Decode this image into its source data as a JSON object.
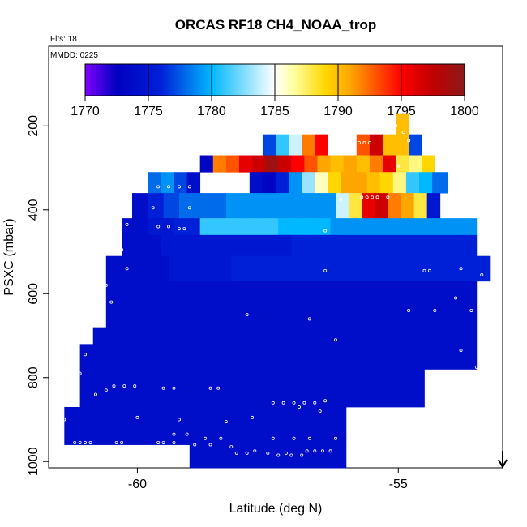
{
  "chart_data": {
    "type": "heatmap",
    "title": "ORCAS RF18 CH4_NOAA_trop",
    "flights_note": "Flts: 18",
    "date_note": "MMDD: 0225",
    "xlabel": "Latitude (deg N)",
    "ylabel": "PSXC (mbar)",
    "xlim": [
      -61.7,
      -53.0
    ],
    "ylim": [
      1015,
      10
    ],
    "y_reversed": true,
    "x_ticks": [
      -60,
      -55
    ],
    "x_tick_labels": [
      "-60",
      "-55"
    ],
    "y_ticks": [
      200,
      400,
      600,
      800,
      1000
    ],
    "y_tick_labels": [
      "200",
      "400",
      "600",
      "800",
      "1000"
    ],
    "colorbar": {
      "min": 1770,
      "max": 1800,
      "ticks": [
        1770,
        1775,
        1780,
        1785,
        1790,
        1795,
        1800
      ],
      "tick_labels": [
        "1770",
        "1775",
        "1780",
        "1785",
        "1790",
        "1795",
        "1800"
      ],
      "colors": [
        "#8000ff",
        "#0000c0",
        "#0020d8",
        "#00b8ff",
        "#ffffff",
        "#ffffa0",
        "#ffd700",
        "#ffa500",
        "#ff0000",
        "#c00000",
        "#8b1a1a"
      ],
      "stops": [
        1770,
        1772.5,
        1776,
        1780,
        1785,
        1786.5,
        1789,
        1791,
        1795,
        1797.5,
        1800
      ]
    },
    "arrow_marker": {
      "x": -53.0,
      "direction": "down"
    },
    "cells": [
      [
        -57.6,
        -57.35,
        220,
        270,
        1777
      ],
      [
        -57.35,
        -57.1,
        220,
        270,
        1781
      ],
      [
        -57.1,
        -56.85,
        220,
        270,
        1784
      ],
      [
        -56.85,
        -56.6,
        220,
        270,
        1792
      ],
      [
        -56.6,
        -56.35,
        220,
        270,
        1795
      ],
      [
        -55.8,
        -55.55,
        220,
        270,
        1793
      ],
      [
        -55.55,
        -55.3,
        220,
        270,
        1797
      ],
      [
        -55.3,
        -55.05,
        220,
        270,
        1790
      ],
      [
        -55.05,
        -54.8,
        220,
        270,
        1790
      ],
      [
        -54.8,
        -54.55,
        220,
        270,
        1777
      ],
      [
        -55.05,
        -54.8,
        170,
        220,
        1790
      ],
      [
        -58.8,
        -58.55,
        270,
        310,
        1773
      ],
      [
        -58.55,
        -58.3,
        270,
        310,
        1792
      ],
      [
        -58.3,
        -58.05,
        270,
        310,
        1793
      ],
      [
        -58.05,
        -57.8,
        270,
        310,
        1796
      ],
      [
        -57.8,
        -57.55,
        270,
        310,
        1797
      ],
      [
        -57.55,
        -57.3,
        270,
        310,
        1799
      ],
      [
        -57.3,
        -57.05,
        270,
        310,
        1797
      ],
      [
        -57.05,
        -56.8,
        270,
        310,
        1795
      ],
      [
        -56.8,
        -56.55,
        270,
        310,
        1793
      ],
      [
        -56.55,
        -56.3,
        270,
        310,
        1791
      ],
      [
        -56.3,
        -56.05,
        270,
        310,
        1790
      ],
      [
        -56.05,
        -55.8,
        270,
        310,
        1791
      ],
      [
        -55.8,
        -55.55,
        270,
        310,
        1790
      ],
      [
        -55.55,
        -55.3,
        270,
        310,
        1792
      ],
      [
        -55.3,
        -55.05,
        270,
        310,
        1796
      ],
      [
        -55.05,
        -54.8,
        270,
        310,
        1788
      ],
      [
        -54.8,
        -54.55,
        270,
        310,
        1787
      ],
      [
        -54.55,
        -54.3,
        270,
        310,
        1789
      ],
      [
        -59.8,
        -59.55,
        310,
        360,
        1778
      ],
      [
        -59.55,
        -59.3,
        310,
        360,
        1779
      ],
      [
        -59.3,
        -59.05,
        310,
        360,
        1777
      ],
      [
        -59.05,
        -58.8,
        310,
        360,
        1774
      ],
      [
        -57.85,
        -57.6,
        310,
        360,
        1774
      ],
      [
        -57.6,
        -57.35,
        310,
        360,
        1773
      ],
      [
        -57.35,
        -57.1,
        310,
        360,
        1776
      ],
      [
        -57.1,
        -56.85,
        310,
        360,
        1779
      ],
      [
        -56.85,
        -56.6,
        310,
        360,
        1783
      ],
      [
        -56.6,
        -56.35,
        310,
        360,
        1786
      ],
      [
        -56.35,
        -56.1,
        310,
        360,
        1789
      ],
      [
        -56.1,
        -55.85,
        310,
        360,
        1791
      ],
      [
        -55.85,
        -55.6,
        310,
        360,
        1791
      ],
      [
        -55.6,
        -55.35,
        310,
        360,
        1790
      ],
      [
        -55.35,
        -55.1,
        310,
        360,
        1789
      ],
      [
        -55.1,
        -54.85,
        310,
        360,
        1787
      ],
      [
        -54.85,
        -54.6,
        310,
        360,
        1781
      ],
      [
        -54.6,
        -54.35,
        310,
        360,
        1780
      ],
      [
        -54.35,
        -54.05,
        310,
        360,
        1778
      ],
      [
        -60.1,
        -59.8,
        360,
        420,
        1774
      ],
      [
        -59.8,
        -59.5,
        360,
        420,
        1776
      ],
      [
        -59.5,
        -59.2,
        360,
        420,
        1777
      ],
      [
        -59.2,
        -58.9,
        360,
        420,
        1778
      ],
      [
        -58.9,
        -58.6,
        360,
        420,
        1778
      ],
      [
        -58.6,
        -58.3,
        360,
        420,
        1778
      ],
      [
        -58.3,
        -58.0,
        360,
        420,
        1779
      ],
      [
        -58.0,
        -57.7,
        360,
        420,
        1779
      ],
      [
        -57.7,
        -57.4,
        360,
        420,
        1779
      ],
      [
        -57.4,
        -57.1,
        360,
        420,
        1779
      ],
      [
        -57.1,
        -56.8,
        360,
        420,
        1779
      ],
      [
        -56.8,
        -56.5,
        360,
        420,
        1779
      ],
      [
        -56.5,
        -56.2,
        360,
        420,
        1779
      ],
      [
        -56.2,
        -55.95,
        360,
        420,
        1784
      ],
      [
        -55.95,
        -55.7,
        360,
        420,
        1788
      ],
      [
        -55.7,
        -55.45,
        360,
        420,
        1796
      ],
      [
        -55.45,
        -55.2,
        360,
        420,
        1797
      ],
      [
        -55.2,
        -54.95,
        360,
        420,
        1792
      ],
      [
        -54.95,
        -54.7,
        360,
        420,
        1791
      ],
      [
        -54.7,
        -54.45,
        360,
        420,
        1788
      ],
      [
        -54.45,
        -54.2,
        360,
        420,
        1775
      ],
      [
        -60.3,
        -60.05,
        420,
        460,
        1774
      ],
      [
        -60.05,
        -59.8,
        420,
        460,
        1774
      ],
      [
        -59.8,
        -59.55,
        420,
        460,
        1775
      ],
      [
        -59.55,
        -59.3,
        420,
        460,
        1775
      ],
      [
        -59.3,
        -59.05,
        420,
        460,
        1776
      ],
      [
        -59.05,
        -58.8,
        420,
        460,
        1776
      ],
      [
        -58.8,
        -58.55,
        420,
        460,
        1781
      ],
      [
        -58.55,
        -58.3,
        420,
        460,
        1781
      ],
      [
        -58.3,
        -58.05,
        420,
        460,
        1781
      ],
      [
        -58.05,
        -57.8,
        420,
        460,
        1781
      ],
      [
        -57.8,
        -57.55,
        420,
        460,
        1781
      ],
      [
        -57.55,
        -57.3,
        420,
        460,
        1781
      ],
      [
        -57.3,
        -57.05,
        420,
        460,
        1780
      ],
      [
        -57.05,
        -56.8,
        420,
        460,
        1780
      ],
      [
        -56.8,
        -56.55,
        420,
        460,
        1780
      ],
      [
        -56.55,
        -56.3,
        420,
        460,
        1780
      ],
      [
        -56.3,
        -56.05,
        420,
        460,
        1779
      ],
      [
        -56.05,
        -55.8,
        420,
        460,
        1779
      ],
      [
        -55.8,
        -55.55,
        420,
        460,
        1779
      ],
      [
        -55.55,
        -55.3,
        420,
        460,
        1779
      ],
      [
        -55.3,
        -55.05,
        420,
        460,
        1779
      ],
      [
        -55.05,
        -54.8,
        420,
        460,
        1779
      ],
      [
        -54.8,
        -54.55,
        420,
        460,
        1779
      ],
      [
        -54.55,
        -54.3,
        420,
        460,
        1779
      ],
      [
        -54.3,
        -54.05,
        420,
        460,
        1779
      ],
      [
        -54.05,
        -53.5,
        420,
        460,
        1779
      ],
      [
        -60.3,
        -60.05,
        460,
        510,
        1774
      ],
      [
        -60.05,
        -59.8,
        460,
        510,
        1774
      ],
      [
        -59.8,
        -59.55,
        460,
        510,
        1774
      ],
      [
        -59.55,
        -59.3,
        460,
        510,
        1775
      ],
      [
        -59.3,
        -59.05,
        460,
        510,
        1775
      ],
      [
        -59.05,
        -58.8,
        460,
        510,
        1775
      ],
      [
        -58.8,
        -58.55,
        460,
        510,
        1775
      ],
      [
        -58.55,
        -58.3,
        460,
        510,
        1775
      ],
      [
        -58.3,
        -58.05,
        460,
        510,
        1775
      ],
      [
        -58.05,
        -57.8,
        460,
        510,
        1775
      ],
      [
        -57.8,
        -57.55,
        460,
        510,
        1775
      ],
      [
        -57.55,
        -57.3,
        460,
        510,
        1775
      ],
      [
        -57.3,
        -57.05,
        460,
        510,
        1775
      ],
      [
        -57.05,
        -56.8,
        460,
        510,
        1776
      ],
      [
        -56.8,
        -56.55,
        460,
        510,
        1776
      ],
      [
        -56.55,
        -56.3,
        460,
        510,
        1776
      ],
      [
        -56.3,
        -56.05,
        460,
        510,
        1776
      ],
      [
        -56.05,
        -55.8,
        460,
        510,
        1776
      ],
      [
        -55.8,
        -55.55,
        460,
        510,
        1776
      ],
      [
        -55.55,
        -55.3,
        460,
        510,
        1776
      ],
      [
        -55.3,
        -55.05,
        460,
        510,
        1776
      ],
      [
        -55.05,
        -54.8,
        460,
        510,
        1776
      ],
      [
        -54.8,
        -54.55,
        460,
        510,
        1776
      ],
      [
        -54.55,
        -54.3,
        460,
        510,
        1776
      ],
      [
        -54.3,
        -54.05,
        460,
        510,
        1776
      ],
      [
        -54.05,
        -53.5,
        460,
        510,
        1776
      ],
      [
        -60.6,
        -60.3,
        510,
        570,
        1774
      ],
      [
        -60.3,
        -60.0,
        510,
        570,
        1774
      ],
      [
        -60.0,
        -59.7,
        510,
        570,
        1774
      ],
      [
        -59.7,
        -59.4,
        510,
        570,
        1774
      ],
      [
        -59.4,
        -59.1,
        510,
        570,
        1775
      ],
      [
        -59.1,
        -58.8,
        510,
        570,
        1775
      ],
      [
        -58.8,
        -58.5,
        510,
        570,
        1775
      ],
      [
        -58.5,
        -58.2,
        510,
        570,
        1775
      ],
      [
        -58.2,
        -57.9,
        510,
        570,
        1776
      ],
      [
        -57.9,
        -57.6,
        510,
        570,
        1776
      ],
      [
        -57.6,
        -57.3,
        510,
        570,
        1776
      ],
      [
        -57.3,
        -57.0,
        510,
        570,
        1776
      ],
      [
        -57.0,
        -56.7,
        510,
        570,
        1776
      ],
      [
        -56.7,
        -56.4,
        510,
        570,
        1776
      ],
      [
        -56.4,
        -56.1,
        510,
        570,
        1776
      ],
      [
        -56.1,
        -55.8,
        510,
        570,
        1776
      ],
      [
        -55.8,
        -55.5,
        510,
        570,
        1776
      ],
      [
        -55.5,
        -55.2,
        510,
        570,
        1776
      ],
      [
        -55.2,
        -54.9,
        510,
        570,
        1776
      ],
      [
        -54.9,
        -54.6,
        510,
        570,
        1776
      ],
      [
        -54.6,
        -54.3,
        510,
        570,
        1776
      ],
      [
        -54.3,
        -54.0,
        510,
        570,
        1776
      ],
      [
        -54.0,
        -53.5,
        510,
        570,
        1776
      ],
      [
        -53.5,
        -53.25,
        510,
        570,
        1776
      ],
      [
        -60.6,
        -53.5,
        570,
        680,
        1774
      ],
      [
        -60.85,
        -53.5,
        680,
        720,
        1774
      ],
      [
        -61.1,
        -53.5,
        720,
        780,
        1774
      ],
      [
        -61.1,
        -54.5,
        780,
        870,
        1774
      ],
      [
        -61.4,
        -56.0,
        870,
        960,
        1774
      ],
      [
        -59.0,
        -56.0,
        960,
        1015,
        1774
      ]
    ],
    "sample_points": [
      [
        -55.05,
        200
      ],
      [
        -54.9,
        215
      ],
      [
        -54.8,
        235
      ],
      [
        -55.75,
        240
      ],
      [
        -55.65,
        240
      ],
      [
        -55.55,
        240
      ],
      [
        -55.0,
        295
      ],
      [
        -55.7,
        370
      ],
      [
        -55.6,
        370
      ],
      [
        -55.5,
        370
      ],
      [
        -55.4,
        370
      ],
      [
        -55.2,
        370
      ],
      [
        -56.1,
        375
      ],
      [
        -59.6,
        345
      ],
      [
        -59.4,
        345
      ],
      [
        -59.2,
        345
      ],
      [
        -59.0,
        345
      ],
      [
        -59.7,
        395
      ],
      [
        -59.0,
        395
      ],
      [
        -60.2,
        435
      ],
      [
        -59.6,
        440
      ],
      [
        -59.4,
        440
      ],
      [
        -59.2,
        445
      ],
      [
        -59.1,
        445
      ],
      [
        -56.4,
        450
      ],
      [
        -60.3,
        495
      ],
      [
        -60.2,
        540
      ],
      [
        -56.4,
        545
      ],
      [
        -54.5,
        545
      ],
      [
        -54.4,
        545
      ],
      [
        -53.8,
        540
      ],
      [
        -53.4,
        555
      ],
      [
        -60.6,
        580
      ],
      [
        -60.5,
        620
      ],
      [
        -54.8,
        640
      ],
      [
        -54.3,
        640
      ],
      [
        -53.9,
        610
      ],
      [
        -53.6,
        640
      ],
      [
        -57.9,
        650
      ],
      [
        -56.7,
        660
      ],
      [
        -56.2,
        710
      ],
      [
        -53.8,
        735
      ],
      [
        -53.5,
        775
      ],
      [
        -60.9,
        715
      ],
      [
        -61.0,
        745
      ],
      [
        -61.1,
        790
      ],
      [
        -60.6,
        830
      ],
      [
        -60.45,
        820
      ],
      [
        -60.25,
        820
      ],
      [
        -60.05,
        820
      ],
      [
        -59.5,
        825
      ],
      [
        -59.3,
        825
      ],
      [
        -58.6,
        825
      ],
      [
        -58.45,
        825
      ],
      [
        -56.4,
        855
      ],
      [
        -57.4,
        860
      ],
      [
        -57.2,
        860
      ],
      [
        -57.0,
        860
      ],
      [
        -56.8,
        860
      ],
      [
        -56.6,
        860
      ],
      [
        -56.9,
        870
      ],
      [
        -56.5,
        880
      ],
      [
        -55.6,
        880
      ],
      [
        -55.0,
        890
      ],
      [
        -60.8,
        840
      ],
      [
        -61.4,
        900
      ],
      [
        -60.0,
        895
      ],
      [
        -59.2,
        900
      ],
      [
        -58.3,
        905
      ],
      [
        -57.8,
        895
      ],
      [
        -59.3,
        935
      ],
      [
        -59.05,
        935
      ],
      [
        -58.7,
        945
      ],
      [
        -58.4,
        945
      ],
      [
        -57.4,
        945
      ],
      [
        -57.0,
        945
      ],
      [
        -56.7,
        945
      ],
      [
        -56.2,
        945
      ],
      [
        -61.2,
        955
      ],
      [
        -61.1,
        955
      ],
      [
        -61.0,
        955
      ],
      [
        -60.9,
        955
      ],
      [
        -60.4,
        955
      ],
      [
        -60.3,
        955
      ],
      [
        -59.6,
        955
      ],
      [
        -59.5,
        955
      ],
      [
        -59.3,
        955
      ],
      [
        -58.9,
        960
      ],
      [
        -58.6,
        960
      ],
      [
        -58.2,
        965
      ],
      [
        -56.75,
        975
      ],
      [
        -56.6,
        975
      ],
      [
        -56.45,
        975
      ],
      [
        -56.3,
        975
      ],
      [
        -58.1,
        980
      ],
      [
        -57.9,
        980
      ],
      [
        -57.75,
        975
      ],
      [
        -57.5,
        980
      ],
      [
        -57.3,
        985
      ],
      [
        -57.15,
        980
      ],
      [
        -57.05,
        985
      ],
      [
        -56.85,
        985
      ]
    ]
  }
}
